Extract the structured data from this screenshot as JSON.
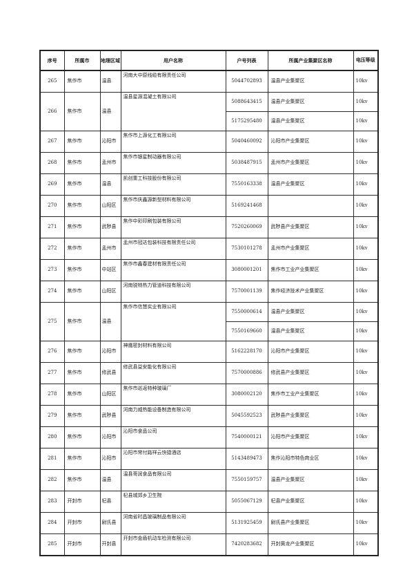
{
  "table": {
    "columns": [
      "序号",
      "所属市",
      "地理区域",
      "用户名称",
      "户号列表",
      "所属产业集聚区名称",
      "电压等级"
    ],
    "rows": [
      {
        "no": "265",
        "city": "焦作市",
        "region": "温县",
        "user": "河南大中原线缆有限责任公司",
        "accounts": [
          {
            "acct": "5044702893",
            "cluster": "温县产业集聚区",
            "volt": "10kv"
          }
        ]
      },
      {
        "no": "266",
        "city": "焦作市",
        "region": "温县",
        "user": "温县星源混凝土有限公司",
        "accounts": [
          {
            "acct": "5088643415",
            "cluster": "温县产业集聚区",
            "volt": "10kv"
          },
          {
            "acct": "5175295480",
            "cluster": "温县产业集聚区",
            "volt": "10kv"
          }
        ]
      },
      {
        "no": "267",
        "city": "焦作市",
        "region": "沁阳市",
        "user": "焦作市上源化工有限公司",
        "accounts": [
          {
            "acct": "5040460092",
            "cluster": "沁阳市产业集聚区",
            "volt": "10kv"
          }
        ]
      },
      {
        "no": "268",
        "city": "焦作市",
        "region": "孟州市",
        "user": "焦作市银星制动器有限公司",
        "accounts": [
          {
            "acct": "5038487915",
            "cluster": "孟州市产业集聚区",
            "volt": "10kv"
          }
        ]
      },
      {
        "no": "269",
        "city": "焦作市",
        "region": "温县",
        "user": "凯创重工科技股份有限公司",
        "accounts": [
          {
            "acct": "7550163338",
            "cluster": "温县产业集聚区",
            "volt": "10kv"
          }
        ]
      },
      {
        "no": "270",
        "city": "焦作市",
        "region": "山阳区",
        "user": "焦作市庆鑫源新型材料有限公司",
        "accounts": [
          {
            "acct": "5169241468",
            "cluster": "",
            "volt": "10kv"
          }
        ]
      },
      {
        "no": "271",
        "city": "焦作市",
        "region": "武陟县",
        "user": "焦作中彩印刷包装有限公司",
        "accounts": [
          {
            "acct": "7520260069",
            "cluster": "武陟县产业集聚区",
            "volt": "10kv"
          }
        ]
      },
      {
        "no": "272",
        "city": "焦作市",
        "region": "孟州市",
        "user": "孟州市冠达包装科技有限责任公司",
        "accounts": [
          {
            "acct": "7530101278",
            "cluster": "孟州市产业集聚区",
            "volt": "10kv"
          }
        ]
      },
      {
        "no": "273",
        "city": "焦作市",
        "region": "中站区",
        "user": "焦作市鑫春建材有限责任公司",
        "accounts": [
          {
            "acct": "3080001201",
            "cluster": "焦作市工业产业集聚区",
            "volt": "10kv"
          }
        ]
      },
      {
        "no": "274",
        "city": "焦作市",
        "region": "山阳区",
        "user": "河南锐特热力管道科技有限公司",
        "accounts": [
          {
            "acct": "7570001139",
            "cluster": "焦作经济技术产业集聚区",
            "volt": "10kv"
          }
        ]
      },
      {
        "no": "275",
        "city": "焦作市",
        "region": "温县",
        "user": "焦作市信慧实业有限公司",
        "accounts": [
          {
            "acct": "7550000614",
            "cluster": "温县产业集聚区",
            "volt": "10kv"
          },
          {
            "acct": "7550169660",
            "cluster": "温县产业集聚区",
            "volt": "10kv"
          }
        ]
      },
      {
        "no": "276",
        "city": "焦作市",
        "region": "沁阳市",
        "user": "神鹰密封材料有限公司",
        "accounts": [
          {
            "acct": "5162228170",
            "cluster": "沁阳市产业集聚区",
            "volt": "10kv"
          }
        ]
      },
      {
        "no": "277",
        "city": "焦作市",
        "region": "修武县",
        "user": "修武县益安能化有限公司",
        "accounts": [
          {
            "acct": "7570000886",
            "cluster": "修武县产业集聚区",
            "volt": "10kv"
          }
        ]
      },
      {
        "no": "278",
        "city": "焦作市",
        "region": "山阳区",
        "user": "焦作市巡返特种玻璃厂",
        "accounts": [
          {
            "acct": "3080002120",
            "cluster": "焦作市工业产业集聚区",
            "volt": "10kv"
          }
        ]
      },
      {
        "no": "279",
        "city": "焦作市",
        "region": "武陟县",
        "user": "河南力威热能设备制造有限公司",
        "accounts": [
          {
            "acct": "5045592523",
            "cluster": "武陟县产业集聚区",
            "volt": "10kv"
          }
        ]
      },
      {
        "no": "280",
        "city": "焦作市",
        "region": "沁阳市",
        "user": "沁阳市食品公司",
        "accounts": [
          {
            "acct": "7540000121",
            "cluster": "沁阳市产业集聚区",
            "volt": "10kv"
          }
        ]
      },
      {
        "no": "281",
        "city": "焦作市",
        "region": "沁阳市",
        "user": "沁阳市常付路祥云快捷酒店",
        "accounts": [
          {
            "acct": "5143489473",
            "cluster": "焦作沁阳市特色商业区",
            "volt": "10kv"
          }
        ]
      },
      {
        "no": "282",
        "city": "焦作市",
        "region": "温县",
        "user": "温县哥润食品有限公司",
        "accounts": [
          {
            "acct": "7550159757",
            "cluster": "温县产业集聚区",
            "volt": "10kv"
          }
        ]
      },
      {
        "no": "283",
        "city": "开封市",
        "region": "杞县",
        "user": "杞县城郊乡卫生院",
        "accounts": [
          {
            "acct": "5055067129",
            "cluster": "杞县产业集聚区",
            "volt": "10kv"
          }
        ]
      },
      {
        "no": "284",
        "city": "开封市",
        "region": "尉氏县",
        "user": "河南省时昌玻璃制品有限公司",
        "accounts": [
          {
            "acct": "5131925459",
            "cluster": "尉氏县产业集聚区",
            "volt": "10kv"
          }
        ]
      },
      {
        "no": "285",
        "city": "开封市",
        "region": "开封县",
        "user": "开封市金盾机动车检测有限公司",
        "accounts": [
          {
            "acct": "7420283682",
            "cluster": "开封黄龙产业集聚区",
            "volt": "10kv"
          }
        ]
      }
    ]
  }
}
